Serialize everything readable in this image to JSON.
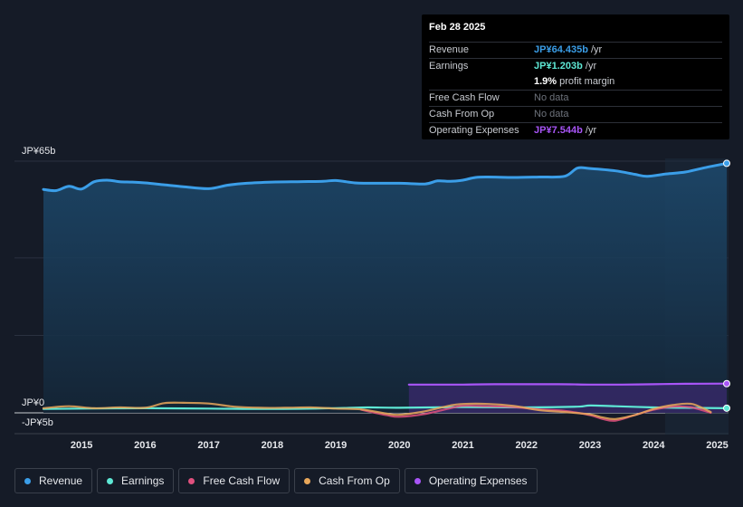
{
  "tooltip": {
    "date": "Feb 28 2025",
    "rows": [
      {
        "label": "Revenue",
        "value": "JP¥64.435b",
        "unit": "/yr",
        "color": "#3b9ee8"
      },
      {
        "label": "Earnings",
        "value": "JP¥1.203b",
        "unit": "/yr",
        "color": "#5ee8d5"
      },
      {
        "label": "",
        "value": "1.9%",
        "unit": "profit margin",
        "color": "#ffffff"
      },
      {
        "label": "Free Cash Flow",
        "value": "No data",
        "unit": "",
        "color": "#6e737c"
      },
      {
        "label": "Cash From Op",
        "value": "No data",
        "unit": "",
        "color": "#6e737c"
      },
      {
        "label": "Operating Expenses",
        "value": "JP¥7.544b",
        "unit": "/yr",
        "color": "#a855f7"
      }
    ]
  },
  "legend": [
    {
      "label": "Revenue",
      "color": "#3b9ee8"
    },
    {
      "label": "Earnings",
      "color": "#5ee8d5"
    },
    {
      "label": "Free Cash Flow",
      "color": "#e0507e"
    },
    {
      "label": "Cash From Op",
      "color": "#e8a75a"
    },
    {
      "label": "Operating Expenses",
      "color": "#a855f7"
    }
  ],
  "chart_data": {
    "type": "line",
    "title": "",
    "xlabel": "",
    "ylabel": "",
    "y_axis_labels": [
      "JP¥65b",
      "JP¥0",
      "-JP¥5b"
    ],
    "ylim": [
      -5,
      65
    ],
    "xlim": [
      2014.4,
      2025.15
    ],
    "x_ticks": [
      "2015",
      "2016",
      "2017",
      "2018",
      "2019",
      "2020",
      "2021",
      "2022",
      "2023",
      "2024",
      "2025"
    ],
    "series": [
      {
        "name": "Revenue",
        "color": "#3b9ee8",
        "x": [
          2014.4,
          2014.6,
          2014.8,
          2015.0,
          2015.2,
          2015.4,
          2015.6,
          2015.8,
          2016.0,
          2016.3,
          2016.6,
          2017.0,
          2017.3,
          2017.6,
          2018.0,
          2018.4,
          2018.8,
          2019.0,
          2019.3,
          2019.5,
          2020.0,
          2020.4,
          2020.6,
          2020.8,
          2021.0,
          2021.2,
          2021.4,
          2021.8,
          2022.2,
          2022.6,
          2022.8,
          2023.0,
          2023.4,
          2023.7,
          2023.9,
          2024.2,
          2024.5,
          2024.8,
          2025.15
        ],
        "values": [
          57.7,
          57.4,
          58.5,
          57.8,
          59.7,
          60.1,
          59.7,
          59.6,
          59.4,
          58.9,
          58.4,
          57.9,
          58.8,
          59.3,
          59.6,
          59.7,
          59.8,
          60.0,
          59.4,
          59.3,
          59.3,
          59.1,
          59.9,
          59.8,
          60.1,
          60.8,
          60.9,
          60.8,
          60.9,
          61.1,
          63.2,
          63.1,
          62.5,
          61.6,
          61.1,
          61.7,
          62.2,
          63.3,
          64.435
        ]
      },
      {
        "name": "Earnings",
        "color": "#5ee8d5",
        "x": [
          2014.4,
          2015.0,
          2016.0,
          2017.0,
          2018.0,
          2019.0,
          2019.5,
          2020.0,
          2021.0,
          2022.0,
          2022.8,
          2023.0,
          2023.4,
          2024.0,
          2024.5,
          2025.15
        ],
        "values": [
          1.0,
          1.1,
          1.2,
          1.1,
          1.0,
          1.2,
          1.4,
          1.3,
          1.5,
          1.4,
          1.6,
          1.9,
          1.7,
          1.4,
          1.3,
          1.203
        ]
      },
      {
        "name": "Free Cash Flow",
        "color": "#e0507e",
        "x": [
          2019.4,
          2019.8,
          2020.0,
          2020.4,
          2020.8,
          2021.0,
          2021.4,
          2021.8,
          2022.2,
          2022.6,
          2023.0,
          2023.2,
          2023.4,
          2023.7,
          2024.0,
          2024.3,
          2024.6,
          2024.9
        ],
        "values": [
          0.8,
          -0.6,
          -1.0,
          -0.3,
          1.2,
          1.8,
          1.7,
          1.5,
          0.9,
          0.5,
          -0.6,
          -1.6,
          -2.0,
          -0.6,
          0.8,
          1.6,
          1.4,
          0.0
        ]
      },
      {
        "name": "Cash From Op",
        "color": "#e8a75a",
        "x": [
          2014.4,
          2014.8,
          2015.2,
          2015.6,
          2016.0,
          2016.3,
          2016.6,
          2017.0,
          2017.4,
          2017.8,
          2018.2,
          2018.6,
          2019.0,
          2019.4,
          2019.8,
          2020.0,
          2020.4,
          2020.8,
          2021.0,
          2021.4,
          2021.8,
          2022.2,
          2022.6,
          2023.0,
          2023.2,
          2023.4,
          2023.7,
          2024.0,
          2024.3,
          2024.6,
          2024.9
        ],
        "values": [
          1.2,
          1.7,
          1.2,
          1.4,
          1.3,
          2.5,
          2.6,
          2.4,
          1.6,
          1.3,
          1.3,
          1.4,
          1.1,
          0.9,
          -0.2,
          -0.5,
          0.4,
          1.9,
          2.3,
          2.3,
          1.8,
          0.7,
          0.2,
          -0.4,
          -1.2,
          -1.6,
          -0.6,
          1.0,
          2.0,
          2.3,
          0.2
        ]
      },
      {
        "name": "Operating Expenses",
        "color": "#a855f7",
        "x": [
          2020.15,
          2020.6,
          2021.0,
          2021.5,
          2022.0,
          2022.5,
          2023.0,
          2023.5,
          2024.0,
          2024.5,
          2025.15
        ],
        "values": [
          7.3,
          7.3,
          7.3,
          7.4,
          7.4,
          7.4,
          7.3,
          7.3,
          7.4,
          7.5,
          7.544
        ]
      }
    ]
  }
}
